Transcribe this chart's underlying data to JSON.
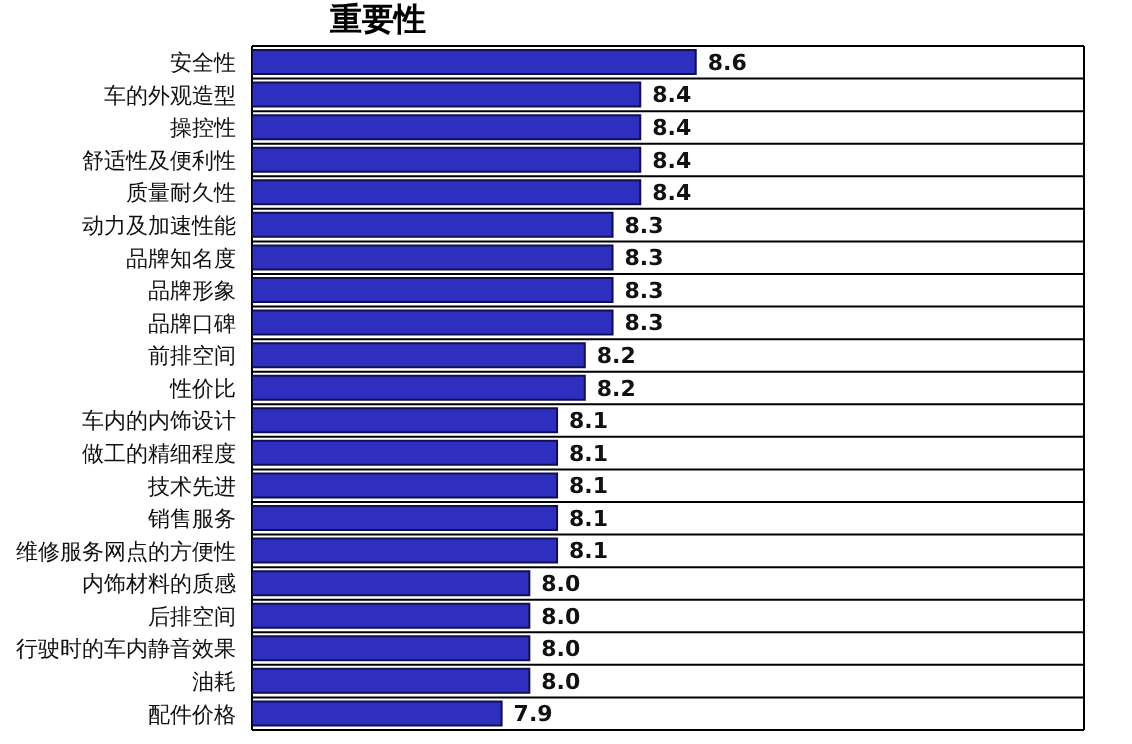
{
  "chart_data": {
    "type": "bar",
    "orientation": "horizontal",
    "title": "重要性",
    "categories": [
      "安全性",
      "车的外观造型",
      "操控性",
      "舒适性及便利性",
      "质量耐久性",
      "动力及加速性能",
      "品牌知名度",
      "品牌形象",
      "品牌口碑",
      "前排空间",
      "性价比",
      "车内的内饰设计",
      "做工的精细程度",
      "技术先进",
      "销售服务",
      "维修服务网点的方便性",
      "内饰材料的质感",
      "后排空间",
      "行驶时的车内静音效果",
      "油耗",
      "配件价格"
    ],
    "values": [
      8.6,
      8.4,
      8.4,
      8.4,
      8.4,
      8.3,
      8.3,
      8.3,
      8.3,
      8.2,
      8.2,
      8.1,
      8.1,
      8.1,
      8.1,
      8.1,
      8.0,
      8.0,
      8.0,
      8.0,
      7.9
    ],
    "value_labels": [
      "8.6",
      "8.4",
      "8.4",
      "8.4",
      "8.4",
      "8.3",
      "8.3",
      "8.3",
      "8.3",
      "8.2",
      "8.2",
      "8.1",
      "8.1",
      "8.1",
      "8.1",
      "8.1",
      "8.0",
      "8.0",
      "8.0",
      "8.0",
      "7.9"
    ],
    "color": "#2e2ebf",
    "xlim": [
      7,
      10
    ],
    "grid": "y",
    "tick_labels": "y"
  }
}
